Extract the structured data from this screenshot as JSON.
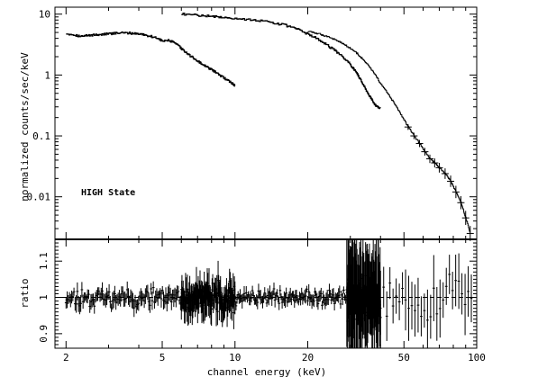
{
  "chart_data": [
    {
      "type": "line",
      "panel": "upper",
      "ylabel": "normalized counts/sec/keV",
      "xscale": "log",
      "yscale": "log",
      "xlim": [
        1.8,
        100
      ],
      "ylim": [
        0.002,
        13
      ],
      "yticks": [
        {
          "value": 0.01,
          "label": "0.01"
        },
        {
          "value": 0.1,
          "label": "0.1"
        },
        {
          "value": 1,
          "label": "1"
        },
        {
          "value": 10,
          "label": "10"
        }
      ],
      "annotation": "HIGH State",
      "series": [
        {
          "x": [
            2.0,
            2.15,
            2.3,
            2.5,
            2.7,
            2.9,
            3.1,
            3.3,
            3.6,
            3.9,
            4.2,
            4.5,
            4.8,
            5.0,
            5.3,
            5.6,
            5.9,
            6.2,
            6.6,
            7.0,
            7.4,
            7.8,
            8.2,
            8.6,
            9.0,
            9.4,
            9.8,
            10.0
          ],
          "y": [
            4.8,
            4.6,
            4.3,
            4.5,
            4.6,
            4.7,
            4.8,
            4.9,
            4.9,
            4.8,
            4.6,
            4.3,
            4.0,
            3.6,
            3.7,
            3.4,
            2.9,
            2.4,
            2.0,
            1.7,
            1.45,
            1.3,
            1.15,
            1.0,
            0.9,
            0.8,
            0.72,
            0.66
          ]
        },
        {
          "x": [
            6.0,
            7.0,
            8.0,
            9.0,
            10.0,
            12.0,
            14.0,
            16.0,
            18.0,
            20.0,
            22.0,
            24.0,
            26.0,
            28.0,
            30.0,
            31.0,
            32.0,
            33.0,
            34.0,
            35.0,
            36.0,
            37.0,
            38.0,
            39.0,
            40.0
          ],
          "y": [
            10.0,
            9.6,
            9.2,
            8.9,
            8.5,
            8.0,
            7.4,
            6.6,
            5.7,
            4.7,
            3.9,
            3.1,
            2.5,
            1.95,
            1.5,
            1.25,
            1.05,
            0.85,
            0.68,
            0.55,
            0.45,
            0.38,
            0.32,
            0.3,
            0.28
          ]
        },
        {
          "x": [
            20.0,
            22.0,
            24.0,
            26.0,
            28.0,
            30.0,
            32.0,
            34.0,
            36.0,
            38.0,
            40.0,
            43.0,
            46.0,
            49.0,
            52.0,
            55.0,
            58.0,
            61.0,
            64.0,
            67.0,
            70.0,
            74.0,
            78.0,
            82.0,
            86.0,
            90.0,
            94.0
          ],
          "y": [
            5.2,
            4.8,
            4.3,
            3.8,
            3.25,
            2.75,
            2.25,
            1.75,
            1.35,
            1.0,
            0.72,
            0.48,
            0.32,
            0.21,
            0.14,
            0.1,
            0.075,
            0.055,
            0.042,
            0.036,
            0.03,
            0.024,
            0.018,
            0.012,
            0.008,
            0.0045,
            0.0025
          ]
        }
      ]
    },
    {
      "type": "scatter",
      "panel": "lower",
      "xlabel": "channel energy (keV)",
      "ylabel": "ratio",
      "xscale": "log",
      "xlim": [
        1.8,
        100
      ],
      "ylim": [
        0.86,
        1.16
      ],
      "reference_line": 1.0,
      "yticks": [
        {
          "value": 0.9,
          "label": "0.9"
        },
        {
          "value": 1.0,
          "label": "1"
        },
        {
          "value": 1.1,
          "label": "1.1"
        }
      ],
      "xticks": [
        {
          "value": 2,
          "label": "2"
        },
        {
          "value": 5,
          "label": "5"
        },
        {
          "value": 10,
          "label": "10"
        },
        {
          "value": 20,
          "label": "20"
        },
        {
          "value": 50,
          "label": "50"
        },
        {
          "value": 100,
          "label": "100"
        }
      ],
      "segments": [
        {
          "xmin": 2.0,
          "xmax": 10.0,
          "count": 150,
          "spread": 0.022,
          "err": 0.018,
          "seed": 11
        },
        {
          "xmin": 6.0,
          "xmax": 10.0,
          "count": 90,
          "spread": 0.035,
          "err": 0.04,
          "seed": 23
        },
        {
          "xmin": 10.0,
          "xmax": 29.0,
          "count": 110,
          "spread": 0.018,
          "err": 0.015,
          "seed": 37
        },
        {
          "xmin": 29.0,
          "xmax": 40.0,
          "count": 80,
          "spread": 0.06,
          "err": 0.12,
          "seed": 41
        },
        {
          "xmin": 40.0,
          "xmax": 95.0,
          "count": 30,
          "spread": 0.06,
          "err": 0.07,
          "seed": 53
        }
      ]
    }
  ]
}
